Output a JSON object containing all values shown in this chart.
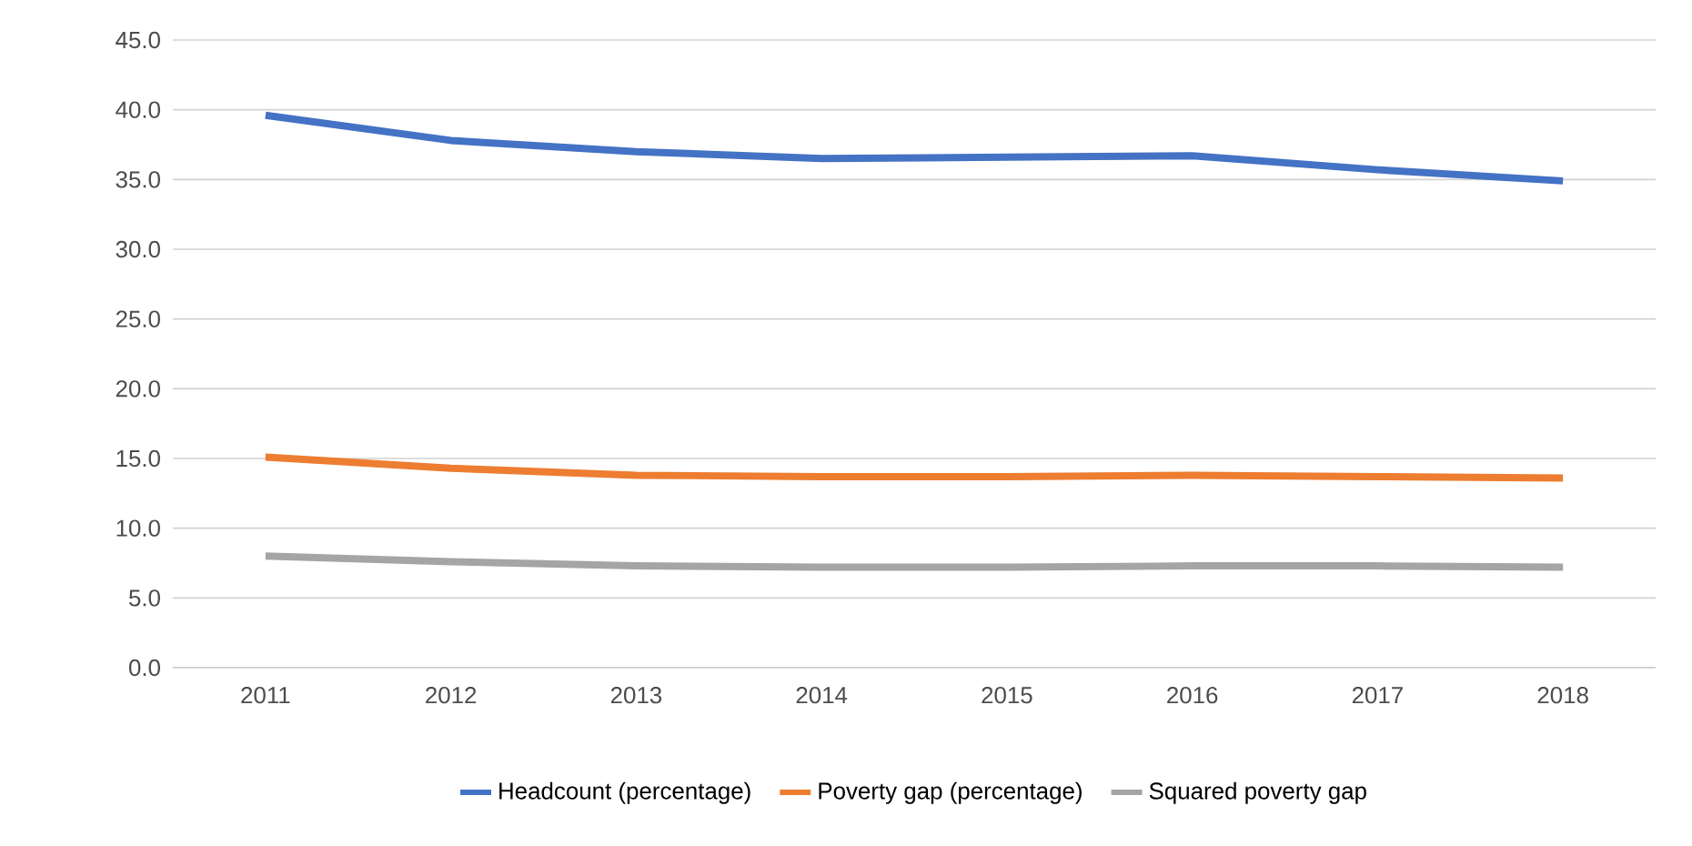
{
  "chart_data": {
    "type": "line",
    "categories": [
      "2011",
      "2012",
      "2013",
      "2014",
      "2015",
      "2016",
      "2017",
      "2018"
    ],
    "series": [
      {
        "name": "Headcount (percentage)",
        "color": "#4472c4",
        "values": [
          39.6,
          37.8,
          37.0,
          36.5,
          36.6,
          36.7,
          35.7,
          34.9
        ]
      },
      {
        "name": "Poverty gap (percentage)",
        "color": "#ed7d31",
        "values": [
          15.1,
          14.3,
          13.8,
          13.7,
          13.7,
          13.8,
          13.7,
          13.6
        ]
      },
      {
        "name": "Squared poverty gap",
        "color": "#a5a5a5",
        "values": [
          8.0,
          7.6,
          7.3,
          7.2,
          7.2,
          7.3,
          7.3,
          7.2
        ]
      }
    ],
    "ylim": [
      0,
      45
    ],
    "yticks": [
      {
        "value": 0,
        "label": "0.0"
      },
      {
        "value": 5,
        "label": "5.0"
      },
      {
        "value": 10,
        "label": "10.0"
      },
      {
        "value": 15,
        "label": "15.0"
      },
      {
        "value": 20,
        "label": "20.0"
      },
      {
        "value": 25,
        "label": "25.0"
      },
      {
        "value": 30,
        "label": "30.0"
      },
      {
        "value": 35,
        "label": "35.0"
      },
      {
        "value": 40,
        "label": "40.0"
      },
      {
        "value": 45,
        "label": "45.0"
      }
    ],
    "grid": "y",
    "legend": "bottom",
    "marker": "none",
    "line_style": "solid"
  }
}
